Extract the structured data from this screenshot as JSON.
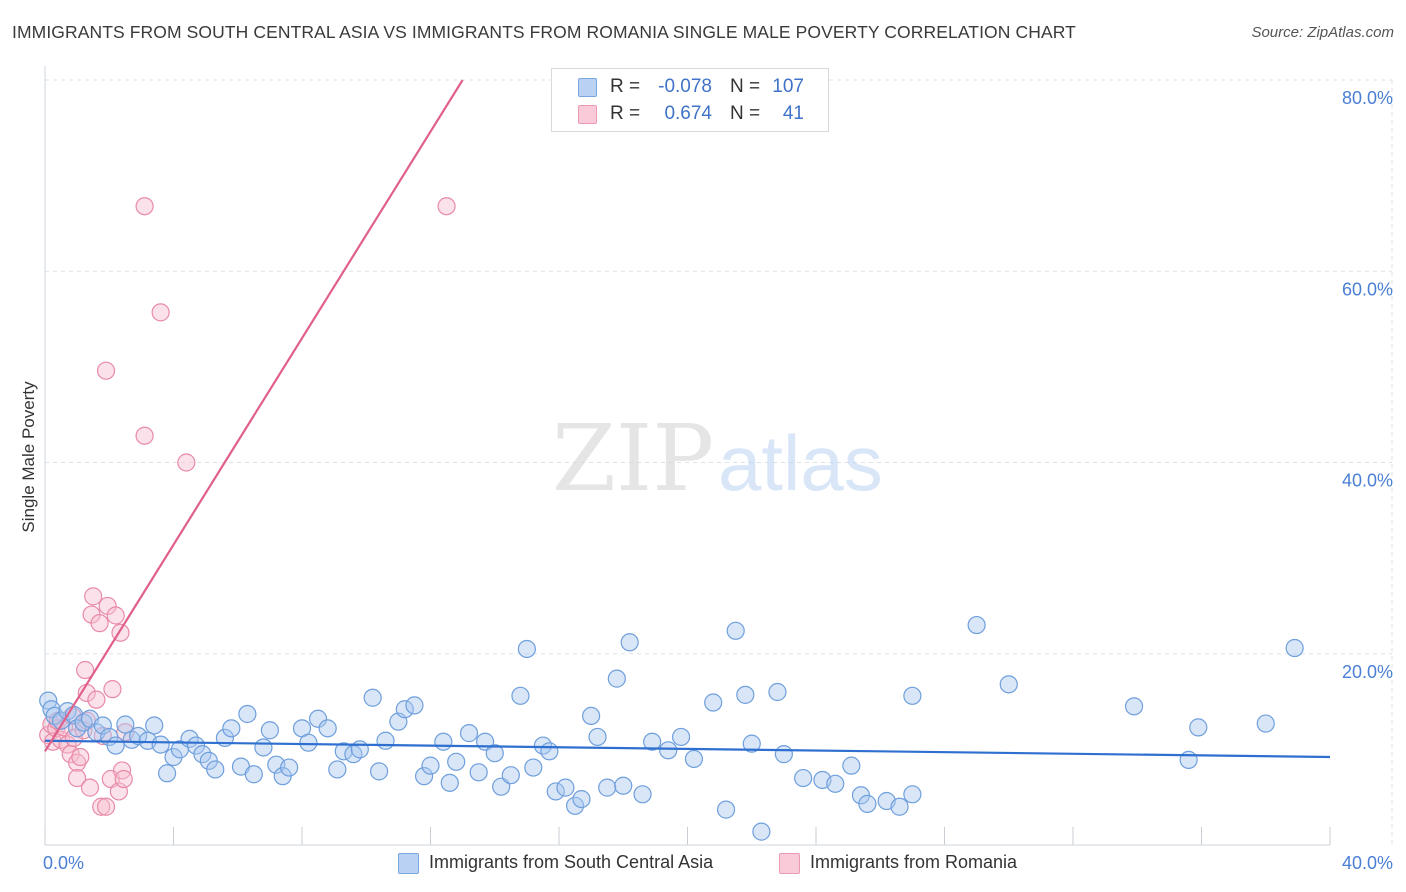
{
  "title": "IMMIGRANTS FROM SOUTH CENTRAL ASIA VS IMMIGRANTS FROM ROMANIA SINGLE MALE POVERTY CORRELATION CHART",
  "source": "Source: ZipAtlas.com",
  "watermark": {
    "zip": "ZIP",
    "atlas": "atlas"
  },
  "colors": {
    "blue_fill": "#a9c8f0",
    "blue_stroke": "#6f9fdc",
    "blue_line": "#2f6fd0",
    "pink_fill": "#f7bfd0",
    "pink_stroke": "#e98aa8",
    "pink_line": "#e0608a",
    "grid": "#dde3ea",
    "axis_label": "#4a7fd4"
  },
  "legend": {
    "series1": {
      "r_label": "R =",
      "r_value": "-0.078",
      "n_label": "N =",
      "n_value": "107"
    },
    "series2": {
      "r_label": "R =",
      "r_value": "0.674",
      "n_label": "N =",
      "n_value": "41"
    }
  },
  "chart_data": {
    "type": "scatter",
    "title": "IMMIGRANTS FROM SOUTH CENTRAL ASIA VS IMMIGRANTS FROM ROMANIA SINGLE MALE POVERTY CORRELATION CHART",
    "xlabel": "",
    "ylabel": "Single Male Poverty",
    "xlim": [
      0,
      40
    ],
    "ylim": [
      0,
      80
    ],
    "x_tick_labels": [
      "0.0%",
      "40.0%"
    ],
    "y_ticks": [
      20,
      40,
      60,
      80
    ],
    "y_tick_labels": [
      "20.0%",
      "40.0%",
      "60.0%",
      "80.0%"
    ],
    "grid": true,
    "series": [
      {
        "name": "Immigrants from South Central Asia",
        "color": "blue",
        "R": -0.078,
        "N": 107,
        "trend": {
          "x": [
            0,
            40
          ],
          "y": [
            10.9,
            9.2
          ]
        },
        "points": [
          [
            0.1,
            15.1
          ],
          [
            0.2,
            14.2
          ],
          [
            0.3,
            13.5
          ],
          [
            0.5,
            13.0
          ],
          [
            0.7,
            14.0
          ],
          [
            0.9,
            13.6
          ],
          [
            1.0,
            12.2
          ],
          [
            1.2,
            12.8
          ],
          [
            1.4,
            13.2
          ],
          [
            1.6,
            11.8
          ],
          [
            1.8,
            12.5
          ],
          [
            2.0,
            11.3
          ],
          [
            2.2,
            10.4
          ],
          [
            2.5,
            12.6
          ],
          [
            2.7,
            11.0
          ],
          [
            2.9,
            11.4
          ],
          [
            3.2,
            10.9
          ],
          [
            3.4,
            12.5
          ],
          [
            3.6,
            10.5
          ],
          [
            3.8,
            7.5
          ],
          [
            4.0,
            9.2
          ],
          [
            4.2,
            10.0
          ],
          [
            4.5,
            11.1
          ],
          [
            4.7,
            10.4
          ],
          [
            4.9,
            9.5
          ],
          [
            5.1,
            8.8
          ],
          [
            5.3,
            7.9
          ],
          [
            5.6,
            11.2
          ],
          [
            5.8,
            12.2
          ],
          [
            6.1,
            8.2
          ],
          [
            6.3,
            13.7
          ],
          [
            6.5,
            7.4
          ],
          [
            6.8,
            10.2
          ],
          [
            7.0,
            12.0
          ],
          [
            7.2,
            8.4
          ],
          [
            7.4,
            7.2
          ],
          [
            7.6,
            8.1
          ],
          [
            8.0,
            12.2
          ],
          [
            8.2,
            10.7
          ],
          [
            8.5,
            13.2
          ],
          [
            8.8,
            12.2
          ],
          [
            9.1,
            7.9
          ],
          [
            9.3,
            9.8
          ],
          [
            9.6,
            9.5
          ],
          [
            9.8,
            10.0
          ],
          [
            10.2,
            15.4
          ],
          [
            10.4,
            7.7
          ],
          [
            10.6,
            10.9
          ],
          [
            11.0,
            12.9
          ],
          [
            11.2,
            14.2
          ],
          [
            11.5,
            14.6
          ],
          [
            11.8,
            7.2
          ],
          [
            12.0,
            8.3
          ],
          [
            12.4,
            10.8
          ],
          [
            12.6,
            6.5
          ],
          [
            12.8,
            8.7
          ],
          [
            13.2,
            11.7
          ],
          [
            13.5,
            7.6
          ],
          [
            13.7,
            10.8
          ],
          [
            14.0,
            9.6
          ],
          [
            14.2,
            6.1
          ],
          [
            14.5,
            7.3
          ],
          [
            14.8,
            15.6
          ],
          [
            15.0,
            20.5
          ],
          [
            15.2,
            8.1
          ],
          [
            15.5,
            10.4
          ],
          [
            15.7,
            9.8
          ],
          [
            15.9,
            5.6
          ],
          [
            16.2,
            6.0
          ],
          [
            16.5,
            4.1
          ],
          [
            16.7,
            4.8
          ],
          [
            17.0,
            13.5
          ],
          [
            17.2,
            11.3
          ],
          [
            17.5,
            6.0
          ],
          [
            17.8,
            17.4
          ],
          [
            18.0,
            6.2
          ],
          [
            18.2,
            21.2
          ],
          [
            18.6,
            5.3
          ],
          [
            18.9,
            10.8
          ],
          [
            19.4,
            9.9
          ],
          [
            19.8,
            11.3
          ],
          [
            20.2,
            9.0
          ],
          [
            20.8,
            14.9
          ],
          [
            21.2,
            3.7
          ],
          [
            21.5,
            22.4
          ],
          [
            21.8,
            15.7
          ],
          [
            22.0,
            10.6
          ],
          [
            22.3,
            1.4
          ],
          [
            22.8,
            16.0
          ],
          [
            23.0,
            9.5
          ],
          [
            23.6,
            7.0
          ],
          [
            24.2,
            6.8
          ],
          [
            24.6,
            6.4
          ],
          [
            25.1,
            8.3
          ],
          [
            25.4,
            5.2
          ],
          [
            25.6,
            4.3
          ],
          [
            26.2,
            4.6
          ],
          [
            26.6,
            4.0
          ],
          [
            27.0,
            5.3
          ],
          [
            27.0,
            15.6
          ],
          [
            30.0,
            16.8
          ],
          [
            33.9,
            14.5
          ],
          [
            35.6,
            8.9
          ],
          [
            35.9,
            12.3
          ],
          [
            38.0,
            12.7
          ],
          [
            38.9,
            20.6
          ],
          [
            29.0,
            23.0
          ]
        ]
      },
      {
        "name": "Immigrants from Romania",
        "color": "pink",
        "R": 0.674,
        "N": 41,
        "trend": {
          "x": [
            0,
            13.0
          ],
          "y": [
            9.8,
            80.0
          ]
        },
        "points": [
          [
            0.1,
            11.5
          ],
          [
            0.2,
            12.6
          ],
          [
            0.25,
            10.8
          ],
          [
            0.35,
            12.2
          ],
          [
            0.4,
            13.0
          ],
          [
            0.5,
            11.0
          ],
          [
            0.6,
            12.3
          ],
          [
            0.7,
            10.5
          ],
          [
            0.8,
            9.5
          ],
          [
            0.85,
            13.5
          ],
          [
            0.9,
            11.2
          ],
          [
            1.0,
            8.6
          ],
          [
            1.0,
            7.0
          ],
          [
            1.1,
            9.2
          ],
          [
            1.2,
            12.0
          ],
          [
            1.25,
            18.3
          ],
          [
            1.3,
            15.9
          ],
          [
            1.4,
            6.0
          ],
          [
            1.45,
            24.1
          ],
          [
            1.5,
            26.0
          ],
          [
            1.6,
            15.2
          ],
          [
            1.7,
            23.2
          ],
          [
            1.75,
            4.0
          ],
          [
            1.8,
            11.4
          ],
          [
            1.9,
            4.0
          ],
          [
            1.95,
            25.0
          ],
          [
            2.05,
            6.9
          ],
          [
            2.1,
            16.3
          ],
          [
            2.2,
            24.0
          ],
          [
            2.3,
            5.6
          ],
          [
            2.35,
            22.2
          ],
          [
            2.4,
            7.8
          ],
          [
            2.45,
            6.9
          ],
          [
            2.5,
            11.8
          ],
          [
            1.9,
            49.6
          ],
          [
            3.1,
            42.8
          ],
          [
            3.1,
            66.8
          ],
          [
            3.6,
            55.7
          ],
          [
            4.4,
            40.0
          ],
          [
            12.5,
            66.8
          ],
          [
            1.3,
            13.0
          ]
        ]
      }
    ]
  },
  "bottom_legend": {
    "series1_label": "Immigrants from South Central Asia",
    "series2_label": "Immigrants from Romania"
  }
}
